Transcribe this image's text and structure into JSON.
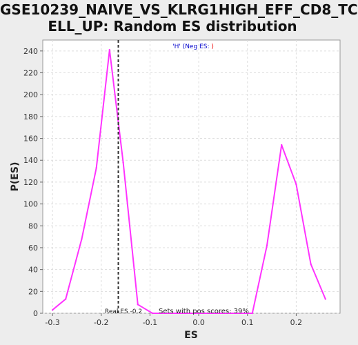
{
  "chart_data": {
    "type": "line",
    "title_line1": "GSE10239_NAIVE_VS_KLRG1HIGH_EFF_CD8_TC",
    "title_line2": "ELL_UP: Random ES distribution",
    "xlabel": "ES",
    "ylabel": "P(ES)",
    "xlim": [
      -0.32,
      0.29
    ],
    "ylim": [
      0,
      250
    ],
    "x_ticks": [
      -0.3,
      -0.2,
      -0.1,
      0.0,
      0.1,
      0.2
    ],
    "x_tick_labels": [
      "-0.3",
      "-0.2",
      "-0.1",
      "0.0",
      "0.1",
      "0.2"
    ],
    "y_ticks": [
      0,
      20,
      40,
      60,
      80,
      100,
      120,
      140,
      160,
      180,
      200,
      220,
      240
    ],
    "y_tick_labels": [
      "0",
      "20",
      "40",
      "60",
      "80",
      "100",
      "120",
      "140",
      "160",
      "180",
      "200",
      "220",
      "240"
    ],
    "grid": true,
    "legend": {
      "placement": "top-center",
      "prefix": "'H'",
      "open": " (",
      "neg": "Neg ES",
      "sep": ": ",
      "close": ")"
    },
    "series": [
      {
        "color": "#ff33ff",
        "points": [
          [
            -0.3,
            3
          ],
          [
            -0.273,
            13
          ],
          [
            -0.24,
            68
          ],
          [
            -0.21,
            133
          ],
          [
            -0.183,
            241
          ],
          [
            -0.155,
            138
          ],
          [
            -0.125,
            8
          ],
          [
            -0.095,
            0
          ],
          [
            0.11,
            0
          ],
          [
            0.14,
            62
          ],
          [
            0.17,
            154
          ],
          [
            0.2,
            118
          ],
          [
            0.23,
            45
          ],
          [
            0.26,
            13
          ]
        ]
      }
    ],
    "real_es": {
      "value": -0.165,
      "label": "Real ES -0.2",
      "color": "#333333"
    },
    "annotation": "Sets with pos scores: 39%"
  }
}
